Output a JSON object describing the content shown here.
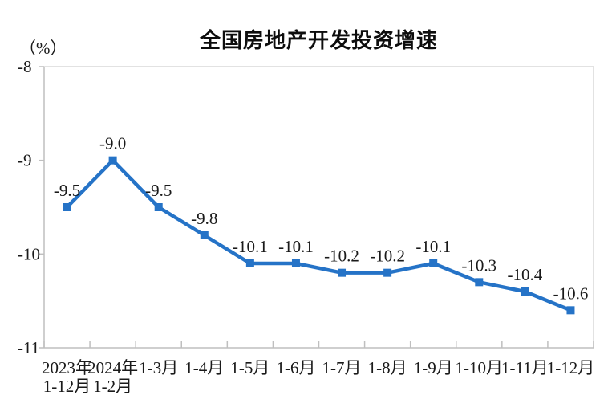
{
  "chart_data": {
    "type": "line",
    "title": "全国房地产开发投资增速",
    "ylabel": "（%）",
    "xlabel": "",
    "ylim": [
      -11,
      -8
    ],
    "yticks": [
      -8,
      -9,
      -10,
      -11
    ],
    "ytick_labels": [
      "-8",
      "-9",
      "-10",
      "-11"
    ],
    "grid": false,
    "legend": "none",
    "categories": [
      "2023年\n1-12月",
      "2024年\n1-2月",
      "1-3月",
      "1-4月",
      "1-5月",
      "1-6月",
      "1-7月",
      "1-8月",
      "1-9月",
      "1-10月",
      "1-11月",
      "1-12月"
    ],
    "series": [
      {
        "name": "全国房地产开发投资增速",
        "values": [
          -9.5,
          -9.0,
          -9.5,
          -9.8,
          -10.1,
          -10.1,
          -10.2,
          -10.2,
          -10.1,
          -10.3,
          -10.4,
          -10.6
        ]
      }
    ],
    "data_labels": [
      "-9.5",
      "-9.0",
      "-9.5",
      "-9.8",
      "-10.1",
      "-10.1",
      "-10.2",
      "-10.2",
      "-10.1",
      "-10.3",
      "-10.4",
      "-10.6"
    ],
    "marker": "square",
    "colors": {
      "line": "#2573C7",
      "marker": "#2573C7",
      "data_label_text": "#1a1a1a",
      "axis_text": "#1a1a1a",
      "axis_line": "#bfbfbf",
      "plot_border": "#d9d9d9",
      "title_text": "#0d0d0d",
      "background": "#ffffff"
    }
  }
}
